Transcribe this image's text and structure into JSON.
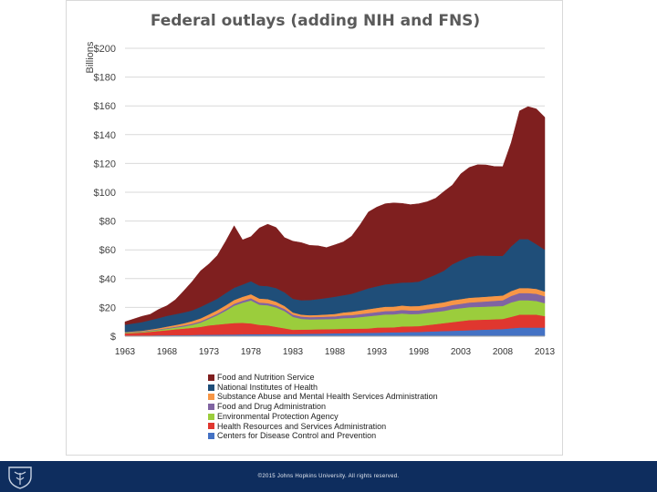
{
  "chart_data": {
    "type": "area",
    "stacked": true,
    "title": "Federal outlays (adding NIH and FNS)",
    "ylabel": "Billions",
    "xlabel": "",
    "x": [
      1963,
      1964,
      1965,
      1966,
      1967,
      1968,
      1969,
      1970,
      1971,
      1972,
      1973,
      1974,
      1975,
      1976,
      1977,
      1978,
      1979,
      1980,
      1981,
      1982,
      1983,
      1984,
      1985,
      1986,
      1987,
      1988,
      1989,
      1990,
      1991,
      1992,
      1993,
      1994,
      1995,
      1996,
      1997,
      1998,
      1999,
      2000,
      2001,
      2002,
      2003,
      2004,
      2005,
      2006,
      2007,
      2008,
      2009,
      2010,
      2011,
      2012,
      2013
    ],
    "xticks": [
      "1963",
      "1968",
      "1973",
      "1978",
      "1983",
      "1988",
      "1993",
      "1998",
      "2003",
      "2008",
      "2013"
    ],
    "yticks": [
      "$",
      "$20",
      "$40",
      "$60",
      "$80",
      "$100",
      "$120",
      "$140",
      "$160",
      "$180",
      "$200"
    ],
    "ylim": [
      0,
      200
    ],
    "series": [
      {
        "name": "Centers for Disease Control and Prevention",
        "color": "#4472c4",
        "values": [
          0.5,
          0.5,
          0.6,
          0.6,
          0.7,
          0.7,
          0.8,
          0.8,
          0.9,
          1.0,
          1.0,
          1.1,
          1.2,
          1.2,
          1.3,
          1.4,
          1.4,
          1.5,
          1.5,
          1.5,
          1.5,
          1.6,
          1.7,
          1.8,
          1.9,
          2.0,
          2.1,
          2.2,
          2.3,
          2.4,
          2.5,
          2.6,
          2.7,
          2.8,
          2.9,
          3.0,
          3.2,
          3.4,
          3.6,
          3.8,
          4.0,
          4.2,
          4.4,
          4.6,
          4.8,
          5.0,
          5.5,
          6.0,
          6.0,
          6.0,
          6.0
        ]
      },
      {
        "name": "Health Resources and Services Administration",
        "color": "#e0372f",
        "values": [
          1.5,
          1.8,
          2.0,
          2.5,
          3.0,
          3.5,
          4.0,
          4.5,
          5.0,
          5.5,
          6.5,
          7.0,
          7.5,
          8.0,
          8.0,
          7.5,
          6.5,
          6.0,
          5.0,
          4.0,
          3.0,
          3.0,
          3.0,
          3.0,
          3.0,
          3.0,
          3.0,
          3.0,
          3.0,
          3.0,
          3.5,
          3.5,
          3.5,
          4.0,
          4.0,
          4.0,
          4.5,
          5.0,
          5.5,
          6.0,
          6.5,
          7.0,
          7.0,
          7.0,
          7.0,
          7.0,
          8.0,
          9.0,
          9.0,
          9.0,
          8.0
        ]
      },
      {
        "name": "Environmental Protection Agency",
        "color": "#9bcd3c",
        "values": [
          0.5,
          0.5,
          0.5,
          0.6,
          0.7,
          1.0,
          1.2,
          1.5,
          2.0,
          3.0,
          4.5,
          6.5,
          9.0,
          12.0,
          14.0,
          16.0,
          14.0,
          14.0,
          13.5,
          12.0,
          9.0,
          7.5,
          7.0,
          7.0,
          7.0,
          7.0,
          7.5,
          7.5,
          8.0,
          8.5,
          8.5,
          9.0,
          9.0,
          9.0,
          8.5,
          8.5,
          8.5,
          8.5,
          8.5,
          9.0,
          9.0,
          9.0,
          9.0,
          9.0,
          9.0,
          9.0,
          10.0,
          10.0,
          10.0,
          9.5,
          9.0
        ]
      },
      {
        "name": "Food and Drug Administration",
        "color": "#8064a2",
        "values": [
          0.3,
          0.3,
          0.3,
          0.4,
          0.4,
          0.5,
          0.6,
          0.7,
          0.8,
          0.9,
          1.0,
          1.1,
          1.2,
          1.3,
          1.4,
          1.5,
          1.5,
          1.5,
          1.5,
          1.5,
          1.5,
          1.6,
          1.6,
          1.6,
          1.7,
          1.8,
          1.9,
          2.0,
          2.1,
          2.2,
          2.3,
          2.4,
          2.4,
          2.5,
          2.5,
          2.5,
          2.6,
          2.7,
          2.8,
          2.9,
          3.0,
          3.2,
          3.4,
          3.6,
          3.8,
          4.0,
          4.5,
          5.0,
          5.0,
          5.0,
          4.8
        ]
      },
      {
        "name": "Substance Abuse and Mental Health Services Administration",
        "color": "#f79646",
        "values": [
          0.2,
          0.3,
          0.4,
          0.6,
          0.8,
          1.0,
          1.2,
          1.5,
          1.8,
          2.0,
          2.2,
          2.4,
          2.6,
          2.7,
          2.7,
          2.8,
          2.8,
          2.8,
          2.5,
          2.0,
          1.5,
          1.3,
          1.3,
          1.4,
          1.5,
          1.7,
          2.0,
          2.3,
          2.5,
          2.7,
          2.9,
          3.0,
          3.0,
          3.0,
          3.0,
          3.0,
          3.1,
          3.2,
          3.2,
          3.3,
          3.3,
          3.3,
          3.3,
          3.3,
          3.3,
          3.3,
          3.4,
          3.5,
          3.5,
          3.4,
          3.3
        ]
      },
      {
        "name": "National Institutes of Health",
        "color": "#1f4e79",
        "values": [
          5.0,
          5.5,
          6.0,
          6.5,
          7.0,
          7.5,
          7.5,
          7.5,
          7.5,
          8.0,
          8.0,
          8.0,
          8.5,
          8.5,
          8.5,
          9.0,
          9.0,
          9.0,
          9.5,
          9.5,
          9.5,
          10.0,
          10.5,
          11.0,
          11.5,
          12.0,
          12.0,
          12.5,
          13.5,
          14.5,
          15.0,
          15.5,
          16.0,
          16.0,
          16.5,
          17.0,
          18.5,
          20.0,
          22.0,
          25.0,
          27.0,
          28.5,
          29.0,
          28.5,
          28.0,
          27.5,
          31.0,
          34.0,
          34.0,
          31.0,
          29.0
        ]
      },
      {
        "name": "Food and Nutrition Service",
        "color": "#7f1f1f",
        "values": [
          2,
          3,
          4,
          4,
          6,
          7,
          10,
          15,
          20,
          25,
          27,
          30,
          36,
          43,
          31,
          31,
          40,
          43,
          42,
          38,
          40,
          40,
          38,
          37,
          35,
          36,
          37,
          40,
          46,
          53,
          55,
          56,
          56,
          55,
          54,
          54,
          53,
          53,
          55,
          55,
          60,
          62,
          63,
          63,
          62,
          62,
          72,
          89,
          92,
          94,
          92
        ]
      }
    ]
  },
  "footer": {
    "copyright": "©2015 Johns Hopkins University. All rights reserved.",
    "logo_icon": "university-shield-icon"
  }
}
